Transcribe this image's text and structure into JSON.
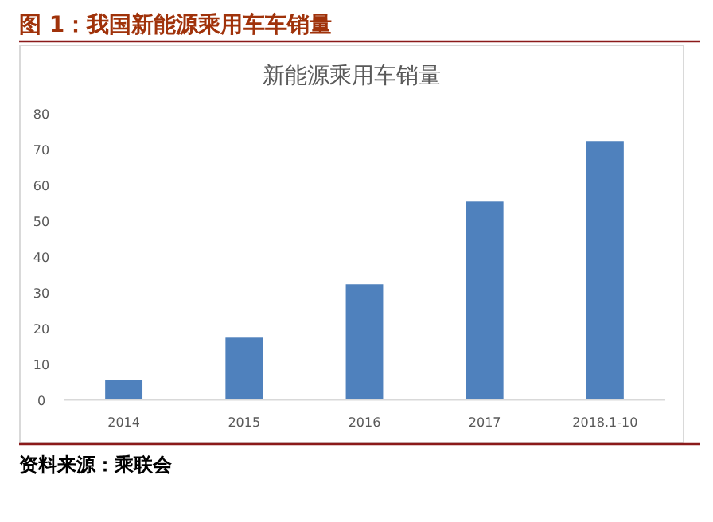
{
  "chart_data": {
    "type": "bar",
    "title": "新能源乘用车销量",
    "subtitle": "图 1：我国新能源乘用车车销量",
    "categories": [
      "2014",
      "2015",
      "2016",
      "2017",
      "2018.1-10"
    ],
    "values": [
      5.6,
      17.4,
      32.3,
      55.4,
      72.3
    ],
    "color": "#4f81bd",
    "ylim": [
      0,
      80
    ],
    "yticks": [
      0,
      10,
      20,
      30,
      40,
      50,
      60,
      70,
      80
    ],
    "annotations": [
      "资料来源：乘联会"
    ]
  }
}
